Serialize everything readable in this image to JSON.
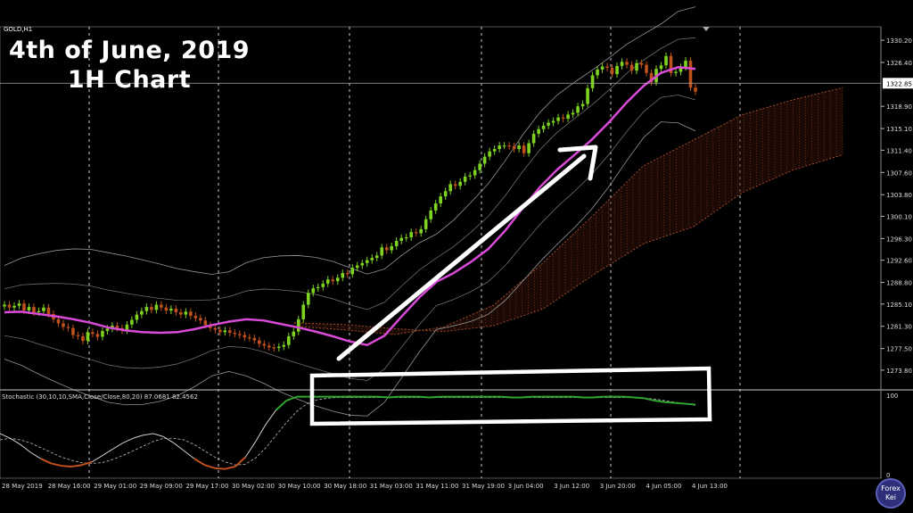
{
  "overlay": {
    "line1": "4th of June, 2019",
    "line2": "1H Chart"
  },
  "symbol_label": "GOLD,H1",
  "stochastic_label": "Stochastic (30,10,10,SMA,Close/Close,80,20) 87.0681 82.4562",
  "stoch_scale": {
    "top": "100",
    "bottom": "0"
  },
  "logo": {
    "line1": "Forex",
    "line2": "Kei"
  },
  "colors": {
    "background": "#000000",
    "up_candle": "#7ed321",
    "down_candle": "#c0501c",
    "moving_average": "#d94ad8",
    "bands": "#9a9a9a",
    "cloud": "#a04a2a",
    "stoch_main": "#2fa62f",
    "stoch_oversold": "#c0501c",
    "annotation": "#ffffff"
  },
  "chart_data": [
    {
      "type": "candlestick",
      "symbol": "GOLD,H1",
      "ylim": [
        1271.5,
        1332.5
      ],
      "y_ticks": [
        "1330.20",
        "1326.40",
        "1322.85",
        "1318.90",
        "1315.10",
        "1311.40",
        "1307.60",
        "1303.80",
        "1300.10",
        "1296.30",
        "1292.60",
        "1288.80",
        "1285.10",
        "1281.30",
        "1277.50",
        "1273.80"
      ],
      "current_price": "1322.85",
      "x_labels": [
        "28 May 2019",
        "28 May 16:00",
        "29 May 01:00",
        "29 May 09:00",
        "29 May 17:00",
        "30 May 02:00",
        "30 May 10:00",
        "30 May 18:00",
        "31 May 03:00",
        "31 May 11:00",
        "31 May 19:00",
        "3 Jun 04:00",
        "3 Jun 12:00",
        "3 Jun 20:00",
        "4 Jun 05:00",
        "4 Jun 13:00"
      ],
      "closes": [
        1285.0,
        1284.5,
        1284.8,
        1285.2,
        1284.0,
        1284.6,
        1283.7,
        1283.9,
        1284.5,
        1283.4,
        1282.5,
        1281.8,
        1281.2,
        1281.0,
        1279.8,
        1279.6,
        1278.8,
        1280.3,
        1280.0,
        1279.5,
        1280.5,
        1280.9,
        1281.4,
        1281.0,
        1280.6,
        1281.6,
        1282.4,
        1283.3,
        1283.9,
        1284.6,
        1284.1,
        1285.0,
        1284.5,
        1284.0,
        1284.3,
        1283.7,
        1283.3,
        1283.8,
        1283.1,
        1282.7,
        1282.3,
        1281.5,
        1281.0,
        1280.7,
        1280.3,
        1280.6,
        1280.2,
        1280.0,
        1279.8,
        1279.4,
        1279.3,
        1278.9,
        1278.3,
        1278.0,
        1277.7,
        1277.6,
        1277.8,
        1278.1,
        1279.6,
        1280.4,
        1282.5,
        1285.0,
        1287.0,
        1287.8,
        1288.0,
        1288.6,
        1289.3,
        1289.0,
        1289.6,
        1290.4,
        1290.2,
        1291.3,
        1291.7,
        1292.1,
        1292.6,
        1293.0,
        1293.4,
        1294.8,
        1294.3,
        1295.0,
        1295.9,
        1296.4,
        1296.5,
        1297.4,
        1297.2,
        1297.9,
        1299.6,
        1301.1,
        1302.3,
        1303.5,
        1304.4,
        1305.6,
        1305.3,
        1306.0,
        1306.9,
        1307.1,
        1308.0,
        1309.1,
        1310.3,
        1311.2,
        1311.6,
        1312.2,
        1312.2,
        1312.1,
        1311.6,
        1312.2,
        1310.9,
        1312.6,
        1314.2,
        1315.0,
        1315.6,
        1316.1,
        1316.4,
        1317.0,
        1316.8,
        1317.5,
        1317.8,
        1318.9,
        1319.3,
        1322.0,
        1324.2,
        1325.2,
        1325.7,
        1325.5,
        1324.4,
        1325.8,
        1326.5,
        1326.0,
        1325.0,
        1326.3,
        1326.0,
        1324.6,
        1323.0,
        1325.3,
        1325.9,
        1327.5,
        1324.6,
        1324.8,
        1325.6,
        1326.7,
        1322.1,
        1321.4
      ],
      "moving_average": [
        1283.7,
        1283.8,
        1283.4,
        1283.0,
        1282.5,
        1281.9,
        1281.1,
        1280.6,
        1280.3,
        1280.2,
        1280.3,
        1280.8,
        1281.5,
        1282.1,
        1282.5,
        1282.3,
        1281.7,
        1281.1,
        1280.4,
        1279.6,
        1278.7,
        1278.1,
        1279.7,
        1283.0,
        1286.2,
        1288.9,
        1290.4,
        1292.3,
        1294.5,
        1297.7,
        1301.5,
        1305.1,
        1308.1,
        1310.6,
        1313.2,
        1316.2,
        1319.5,
        1322.4,
        1324.6,
        1325.6,
        1325.3
      ],
      "ma_x_fraction": [
        0,
        0.025,
        0.05,
        0.075,
        0.1,
        0.125,
        0.15,
        0.175,
        0.2,
        0.225,
        0.25,
        0.275,
        0.3,
        0.325,
        0.35,
        0.375,
        0.4,
        0.425,
        0.45,
        0.475,
        0.5,
        0.525,
        0.55,
        0.575,
        0.6,
        0.625,
        0.65,
        0.675,
        0.7,
        0.725,
        0.75,
        0.775,
        0.8,
        0.825,
        0.85,
        0.875,
        0.9,
        0.925,
        0.95,
        0.975,
        1
      ],
      "cloud": {
        "span_a": [
          1281.3,
          1280.7,
          1279.9,
          1281.2,
          1284.9,
          1292.2,
          1300.3,
          1308.7,
          1313.1,
          1317.5,
          1320.0,
          1322.1
        ],
        "span_b": [
          1281.9,
          1281.6,
          1280.9,
          1280.4,
          1281.4,
          1284.3,
          1290.1,
          1295.4,
          1298.3,
          1304.2,
          1308.0,
          1310.6
        ]
      }
    },
    {
      "type": "line",
      "title": "Stochastic (30,10,10,SMA,Close/Close,80,20) 87.0681 82.4562",
      "ylim": [
        0,
        100
      ],
      "levels": [
        80,
        20
      ],
      "series": [
        {
          "values": [
            50,
            44,
            36,
            26,
            18,
            12,
            9,
            8,
            10,
            14,
            22,
            30,
            38,
            44,
            48,
            50,
            46,
            38,
            28,
            18,
            10,
            6,
            5,
            8,
            20,
            40,
            62,
            80,
            92,
            97,
            97,
            97,
            97,
            97,
            97,
            97,
            97,
            97,
            96,
            97,
            97,
            97,
            96,
            97,
            97,
            97,
            97,
            97,
            97,
            97,
            96,
            96,
            97,
            97,
            97,
            97,
            97,
            96,
            96,
            97,
            97,
            97,
            96,
            95,
            92,
            90,
            89,
            88,
            87
          ]
        },
        {
          "values": [
            42,
            44,
            42,
            38,
            32,
            26,
            20,
            16,
            13,
            12,
            13,
            17,
            22,
            28,
            34,
            40,
            44,
            44,
            42,
            36,
            28,
            20,
            14,
            10,
            11,
            19,
            32,
            48,
            64,
            78,
            88,
            93,
            95,
            96,
            96,
            96,
            96,
            96,
            96,
            96,
            96,
            96,
            96,
            96,
            96,
            96,
            96,
            96,
            96,
            96,
            96,
            96,
            96,
            96,
            96,
            96,
            96,
            96,
            96,
            96,
            96,
            96,
            96,
            95,
            94,
            92,
            90,
            88,
            86
          ]
        }
      ]
    }
  ],
  "annotations": {
    "arrow": "uptrend arrow",
    "box": "stochastic overbought highlight"
  }
}
